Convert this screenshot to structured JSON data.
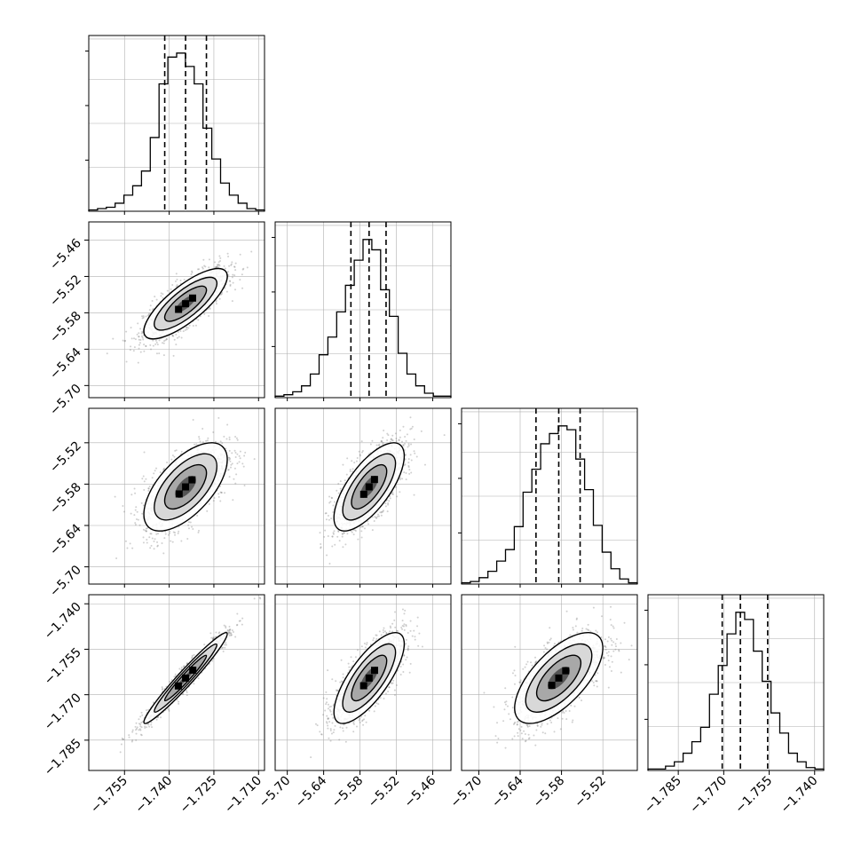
{
  "chart_data": {
    "type": "corner",
    "title": "",
    "n_params": 4,
    "param_ranges": [
      [
        -1.767,
        -1.708
      ],
      [
        -5.72,
        -5.43
      ],
      [
        -5.725,
        -5.47
      ],
      [
        -1.795,
        -1.737
      ]
    ],
    "ticks": [
      [
        "-1.755",
        "-1.740",
        "-1.725",
        "-1.710"
      ],
      [
        "-5.70",
        "-5.64",
        "-5.58",
        "-5.52",
        "-5.46"
      ],
      [
        "-5.70",
        "-5.64",
        "-5.58",
        "-5.52"
      ],
      [
        "-1.785",
        "-1.770",
        "-1.755",
        "-1.740"
      ]
    ],
    "y_ticks": [
      [],
      [
        "-5.46",
        "-5.52",
        "-5.58",
        "-5.64",
        "-5.70"
      ],
      [
        "-5.52",
        "-5.58",
        "-5.64",
        "-5.70"
      ],
      [
        "-1.740",
        "-1.755",
        "-1.770",
        "-1.785"
      ]
    ],
    "axis_labels": [
      "",
      "",
      "",
      ""
    ],
    "grid": true,
    "quantile_lines": [
      [
        -1.7415,
        -1.7345,
        -1.7275
      ],
      [
        -5.595,
        -5.565,
        -5.537
      ],
      [
        -5.617,
        -5.584,
        -5.553
      ],
      [
        -1.7705,
        -1.7645,
        -1.7555
      ]
    ],
    "histograms": [
      {
        "bin_edges": [
          -1.767,
          -1.76405,
          -1.7611,
          -1.75815,
          -1.7552,
          -1.75225,
          -1.7493,
          -1.74635,
          -1.7434,
          -1.74045,
          -1.7375,
          -1.73455,
          -1.7316,
          -1.72865,
          -1.7257,
          -1.72275,
          -1.7198,
          -1.71685,
          -1.7139,
          -1.71095,
          -1.708
        ],
        "counts": [
          1,
          2,
          3,
          6,
          12,
          19,
          30,
          55,
          95,
          115,
          118,
          108,
          95,
          62,
          39,
          21,
          12,
          6,
          2,
          1
        ]
      },
      {
        "bin_edges": [
          -5.72,
          -5.7055,
          -5.691,
          -5.6765,
          -5.662,
          -5.6475,
          -5.633,
          -5.6185,
          -5.604,
          -5.5895,
          -5.575,
          -5.5605,
          -5.546,
          -5.5315,
          -5.517,
          -5.5025,
          -5.488,
          -5.4735,
          -5.459,
          -5.4445,
          -5.43
        ],
        "counts": [
          1,
          2,
          4,
          8,
          16,
          29,
          41,
          58,
          76,
          93,
          107,
          100,
          73,
          55,
          30,
          16,
          8,
          3,
          1,
          1
        ]
      },
      {
        "bin_edges": [
          -5.725,
          -5.71225,
          -5.6995,
          -5.68675,
          -5.674,
          -5.66125,
          -5.6485,
          -5.63575,
          -5.623,
          -5.61025,
          -5.5975,
          -5.58475,
          -5.572,
          -5.55925,
          -5.5465,
          -5.53375,
          -5.521,
          -5.50825,
          -5.4955,
          -5.48275,
          -5.47
        ],
        "counts": [
          1,
          2,
          5,
          10,
          18,
          27,
          45,
          72,
          90,
          110,
          118,
          124,
          121,
          98,
          74,
          46,
          25,
          12,
          4,
          1
        ]
      },
      {
        "bin_edges": [
          -1.795,
          -1.7921,
          -1.7892,
          -1.7863,
          -1.7834,
          -1.7805,
          -1.7776,
          -1.7747,
          -1.7718,
          -1.7689,
          -1.766,
          -1.7631,
          -1.7602,
          -1.7573,
          -1.7544,
          -1.7515,
          -1.7486,
          -1.7457,
          -1.7428,
          -1.7399,
          -1.737
        ],
        "counts": [
          1,
          1,
          3,
          6,
          12,
          20,
          30,
          53,
          73,
          95,
          110,
          105,
          83,
          62,
          40,
          26,
          12,
          6,
          2,
          1
        ]
      }
    ],
    "pair_correlations": [
      {
        "row": 1,
        "col": 0,
        "rho": 0.78
      },
      {
        "row": 2,
        "col": 0,
        "rho": 0.62
      },
      {
        "row": 2,
        "col": 1,
        "rho": 0.7
      },
      {
        "row": 3,
        "col": 0,
        "rho": 0.97
      },
      {
        "row": 3,
        "col": 1,
        "rho": 0.75
      },
      {
        "row": 3,
        "col": 2,
        "rho": 0.66
      }
    ],
    "colors": {
      "line": "#000000",
      "points": "#777777",
      "grid": "#b0b0b0"
    }
  }
}
